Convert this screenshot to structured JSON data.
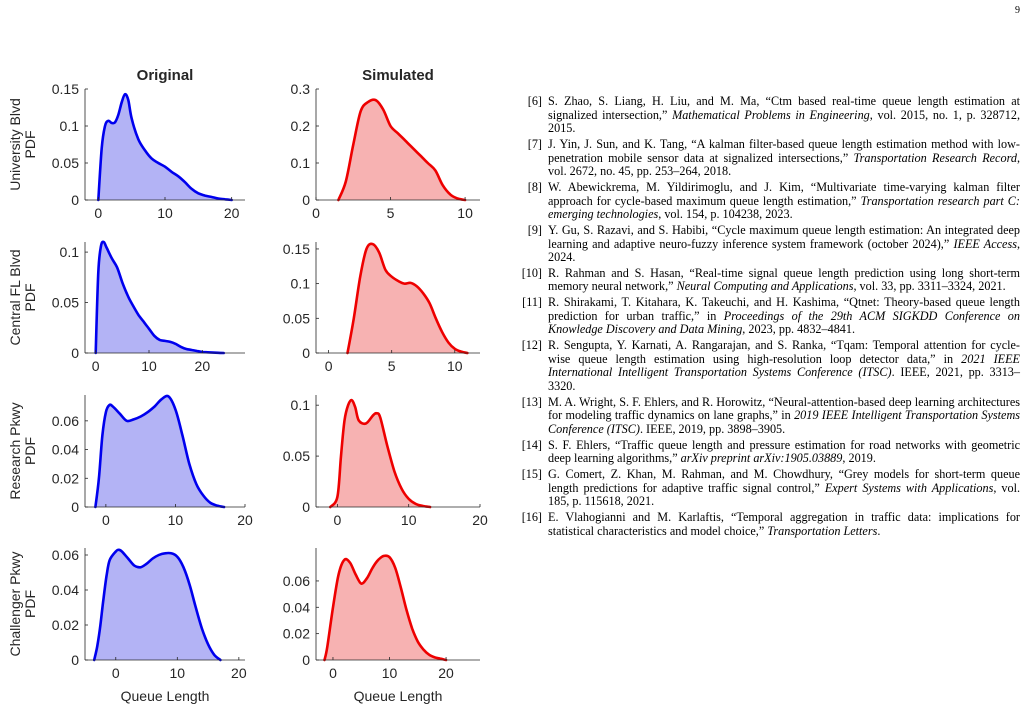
{
  "page": {
    "number": "9"
  },
  "figure": {
    "column_titles": [
      "Original",
      "Simulated"
    ],
    "row_labels": [
      {
        "line1": "University Blvd",
        "line2": "PDF"
      },
      {
        "line1": "Central FL Blvd",
        "line2": "PDF"
      },
      {
        "line1": "Research Pkwy",
        "line2": "PDF"
      },
      {
        "line1": "Challenger Pkwy",
        "line2": "PDF"
      }
    ],
    "xlabel": "Queue Length",
    "colors": {
      "original_line": "#0000ee",
      "original_fill": "#b3b3f5",
      "simulated_line": "#ee0000",
      "simulated_fill": "#f7b2b2"
    }
  },
  "chart_data": [
    {
      "type": "area",
      "row": "University Blvd",
      "column": "Original",
      "xlim": [
        -2,
        22
      ],
      "ylim": [
        0,
        0.15
      ],
      "xticks": [
        "0",
        "10",
        "20"
      ],
      "yticks": [
        "0",
        "0.05",
        "0.1",
        "0.15"
      ],
      "x": [
        0,
        0.5,
        1,
        1.5,
        2,
        2.5,
        3,
        3.5,
        4,
        4.5,
        5,
        6,
        7,
        8,
        9,
        10,
        11,
        12,
        13,
        14,
        15,
        16,
        17,
        18,
        19,
        20
      ],
      "y": [
        0,
        0.07,
        0.1,
        0.107,
        0.104,
        0.105,
        0.115,
        0.132,
        0.143,
        0.135,
        0.11,
        0.082,
        0.067,
        0.056,
        0.05,
        0.045,
        0.038,
        0.032,
        0.024,
        0.015,
        0.009,
        0.006,
        0.004,
        0.002,
        0.001,
        0
      ]
    },
    {
      "type": "area",
      "row": "University Blvd",
      "column": "Simulated",
      "xlim": [
        0,
        11
      ],
      "ylim": [
        0,
        0.3
      ],
      "xticks": [
        "0",
        "5",
        "10"
      ],
      "yticks": [
        "0",
        "0.1",
        "0.2",
        "0.3"
      ],
      "x": [
        1.5,
        2,
        2.5,
        3,
        3.5,
        4,
        4.5,
        5,
        5.5,
        6,
        6.5,
        7,
        7.5,
        8,
        8.5,
        9,
        9.5,
        10
      ],
      "y": [
        0,
        0.05,
        0.15,
        0.24,
        0.265,
        0.27,
        0.245,
        0.2,
        0.18,
        0.16,
        0.14,
        0.12,
        0.1,
        0.08,
        0.04,
        0.015,
        0.004,
        0
      ]
    },
    {
      "type": "area",
      "row": "Central FL Blvd",
      "column": "Original",
      "xlim": [
        -2,
        28
      ],
      "ylim": [
        0,
        0.11
      ],
      "xticks": [
        "0",
        "10",
        "20"
      ],
      "yticks": [
        "0",
        "0.05",
        "0.1"
      ],
      "x": [
        0,
        0.5,
        1,
        1.5,
        2,
        3,
        4,
        5,
        6,
        7,
        8,
        9,
        10,
        11,
        12,
        13,
        14,
        15,
        16,
        17,
        18,
        19,
        20,
        21,
        22,
        23,
        24
      ],
      "y": [
        0,
        0.08,
        0.106,
        0.11,
        0.105,
        0.094,
        0.085,
        0.07,
        0.057,
        0.047,
        0.038,
        0.031,
        0.024,
        0.017,
        0.013,
        0.012,
        0.011,
        0.009,
        0.006,
        0.004,
        0.003,
        0.002,
        0.001,
        0.0007,
        0.0004,
        0.0002,
        0
      ]
    },
    {
      "type": "area",
      "row": "Central FL Blvd",
      "column": "Simulated",
      "xlim": [
        -1,
        12
      ],
      "ylim": [
        0,
        0.16
      ],
      "xticks": [
        "0",
        "5",
        "10"
      ],
      "yticks": [
        "0",
        "0.05",
        "0.1",
        "0.15"
      ],
      "x": [
        1.5,
        2,
        2.5,
        3,
        3.5,
        4,
        4.5,
        5,
        5.5,
        6,
        6.5,
        7,
        7.5,
        8,
        8.5,
        9,
        9.5,
        10,
        10.5,
        11
      ],
      "y": [
        0,
        0.05,
        0.11,
        0.15,
        0.157,
        0.145,
        0.12,
        0.11,
        0.104,
        0.1,
        0.101,
        0.096,
        0.086,
        0.072,
        0.05,
        0.03,
        0.015,
        0.006,
        0.002,
        0
      ]
    },
    {
      "type": "area",
      "row": "Research Pkwy",
      "column": "Original",
      "xlim": [
        -3,
        20
      ],
      "ylim": [
        0,
        0.078
      ],
      "xticks": [
        "0",
        "10",
        "20"
      ],
      "yticks": [
        "0",
        "0.02",
        "0.04",
        "0.06"
      ],
      "x": [
        -1.5,
        -1,
        -0.5,
        0,
        0.5,
        1,
        2,
        3,
        4,
        5,
        6,
        7,
        8,
        9,
        10,
        11,
        12,
        13,
        14,
        15,
        16,
        17
      ],
      "y": [
        0,
        0.02,
        0.05,
        0.066,
        0.071,
        0.07,
        0.065,
        0.06,
        0.061,
        0.063,
        0.066,
        0.07,
        0.075,
        0.077,
        0.068,
        0.05,
        0.03,
        0.016,
        0.008,
        0.003,
        0.001,
        0
      ]
    },
    {
      "type": "area",
      "row": "Research Pkwy",
      "column": "Simulated",
      "xlim": [
        -3,
        20
      ],
      "ylim": [
        0,
        0.11
      ],
      "xticks": [
        "0",
        "10",
        "20"
      ],
      "yticks": [
        "0",
        "0.05",
        "0.1"
      ],
      "x": [
        -1,
        0,
        0.5,
        1,
        1.5,
        2,
        2.5,
        3,
        4,
        5,
        5.5,
        6,
        7,
        8,
        9,
        10,
        11,
        12,
        13
      ],
      "y": [
        0,
        0.01,
        0.05,
        0.085,
        0.1,
        0.105,
        0.098,
        0.085,
        0.082,
        0.09,
        0.092,
        0.088,
        0.06,
        0.035,
        0.018,
        0.008,
        0.003,
        0.001,
        0
      ]
    },
    {
      "type": "area",
      "row": "Challenger Pkwy",
      "column": "Original",
      "xlim": [
        -5,
        21
      ],
      "ylim": [
        0,
        0.064
      ],
      "xticks": [
        "0",
        "10",
        "20"
      ],
      "yticks": [
        "0",
        "0.02",
        "0.04",
        "0.06"
      ],
      "x": [
        -3.5,
        -3,
        -2.5,
        -2,
        -1.5,
        -1,
        0,
        0.5,
        1,
        2,
        3,
        4,
        5,
        6,
        7,
        8,
        9,
        10,
        11,
        12,
        13,
        14,
        15,
        16,
        17
      ],
      "y": [
        0,
        0.008,
        0.02,
        0.035,
        0.048,
        0.057,
        0.062,
        0.063,
        0.062,
        0.058,
        0.054,
        0.053,
        0.055,
        0.058,
        0.06,
        0.061,
        0.061,
        0.059,
        0.053,
        0.043,
        0.03,
        0.018,
        0.009,
        0.003,
        0
      ]
    },
    {
      "type": "area",
      "row": "Challenger Pkwy",
      "column": "Simulated",
      "xlim": [
        -3,
        26
      ],
      "ylim": [
        0,
        0.085
      ],
      "xticks": [
        "0",
        "10",
        "20"
      ],
      "yticks": [
        "0",
        "0.02",
        "0.04",
        "0.06"
      ],
      "x": [
        -1.5,
        -1,
        0,
        1,
        2,
        3,
        4,
        5,
        6,
        7,
        8,
        9,
        10,
        11,
        12,
        13,
        14,
        15,
        16,
        17,
        18,
        19,
        20
      ],
      "y": [
        0,
        0.01,
        0.04,
        0.065,
        0.076,
        0.074,
        0.065,
        0.058,
        0.062,
        0.07,
        0.076,
        0.079,
        0.078,
        0.07,
        0.055,
        0.038,
        0.024,
        0.014,
        0.008,
        0.004,
        0.002,
        0.001,
        0
      ]
    }
  ],
  "references": [
    {
      "num": "[6]",
      "parts": [
        {
          "t": "S. Zhao, S. Liang, H. Liu, and M. Ma, “Ctm based real-time queue length estimation at signalized intersection,” "
        },
        {
          "t": "Mathematical Problems in Engineering",
          "i": true
        },
        {
          "t": ", vol. 2015, no. 1, p. 328712, 2015."
        }
      ]
    },
    {
      "num": "[7]",
      "parts": [
        {
          "t": "J. Yin, J. Sun, and K. Tang, “A kalman filter-based queue length estimation method with low-penetration mobile sensor data at signalized intersections,” "
        },
        {
          "t": "Transportation Research Record",
          "i": true
        },
        {
          "t": ", vol. 2672, no. 45, pp. 253–264, 2018."
        }
      ]
    },
    {
      "num": "[8]",
      "parts": [
        {
          "t": "W. Abewickrema, M. Yildirimoglu, and J. Kim, “Multivariate time-varying kalman filter approach for cycle-based maximum queue length estimation,” "
        },
        {
          "t": "Transportation research part C: emerging technologies",
          "i": true
        },
        {
          "t": ", vol. 154, p. 104238, 2023."
        }
      ]
    },
    {
      "num": "[9]",
      "parts": [
        {
          "t": "Y. Gu, S. Razavi, and S. Habibi, “Cycle maximum queue length estimation: An integrated deep learning and adaptive neuro-fuzzy inference system framework (october 2024),” "
        },
        {
          "t": "IEEE Access",
          "i": true
        },
        {
          "t": ", 2024."
        }
      ]
    },
    {
      "num": "[10]",
      "parts": [
        {
          "t": "R. Rahman and S. Hasan, “Real-time signal queue length prediction using long short-term memory neural network,” "
        },
        {
          "t": "Neural Computing and Applications",
          "i": true
        },
        {
          "t": ", vol. 33, pp. 3311–3324, 2021."
        }
      ]
    },
    {
      "num": "[11]",
      "parts": [
        {
          "t": "R. Shirakami, T. Kitahara, K. Takeuchi, and H. Kashima, “Qtnet: Theory-based queue length prediction for urban traffic,” in "
        },
        {
          "t": "Proceedings of the 29th ACM SIGKDD Conference on Knowledge Discovery and Data Mining",
          "i": true
        },
        {
          "t": ", 2023, pp. 4832–4841."
        }
      ]
    },
    {
      "num": "[12]",
      "parts": [
        {
          "t": "R. Sengupta, Y. Karnati, A. Rangarajan, and S. Ranka, “Tqam: Temporal attention for cycle-wise queue length estimation using high-resolution loop detector data,” in "
        },
        {
          "t": "2021 IEEE International Intelligent Transportation Systems Conference (ITSC)",
          "i": true
        },
        {
          "t": ". IEEE, 2021, pp. 3313–3320."
        }
      ]
    },
    {
      "num": "[13]",
      "parts": [
        {
          "t": "M. A. Wright, S. F. Ehlers, and R. Horowitz, “Neural-attention-based deep learning architectures for modeling traffic dynamics on lane graphs,” in "
        },
        {
          "t": "2019 IEEE Intelligent Transportation Systems Conference (ITSC)",
          "i": true
        },
        {
          "t": ". IEEE, 2019, pp. 3898–3905."
        }
      ]
    },
    {
      "num": "[14]",
      "parts": [
        {
          "t": "S. F. Ehlers, “Traffic queue length and pressure estimation for road networks with geometric deep learning algorithms,” "
        },
        {
          "t": "arXiv preprint arXiv:1905.03889",
          "i": true
        },
        {
          "t": ", 2019."
        }
      ]
    },
    {
      "num": "[15]",
      "parts": [
        {
          "t": "G. Comert, Z. Khan, M. Rahman, and M. Chowdhury, “Grey models for short-term queue length predictions for adaptive traffic signal control,” "
        },
        {
          "t": "Expert Systems with Applications",
          "i": true
        },
        {
          "t": ", vol. 185, p. 115618, 2021."
        }
      ]
    },
    {
      "num": "[16]",
      "parts": [
        {
          "t": "E. Vlahogianni and M. Karlaftis, “Temporal aggregation in traffic data: implications for statistical characteristics and model choice,” "
        },
        {
          "t": "Transportation Letters",
          "i": true
        },
        {
          "t": "."
        }
      ]
    }
  ]
}
